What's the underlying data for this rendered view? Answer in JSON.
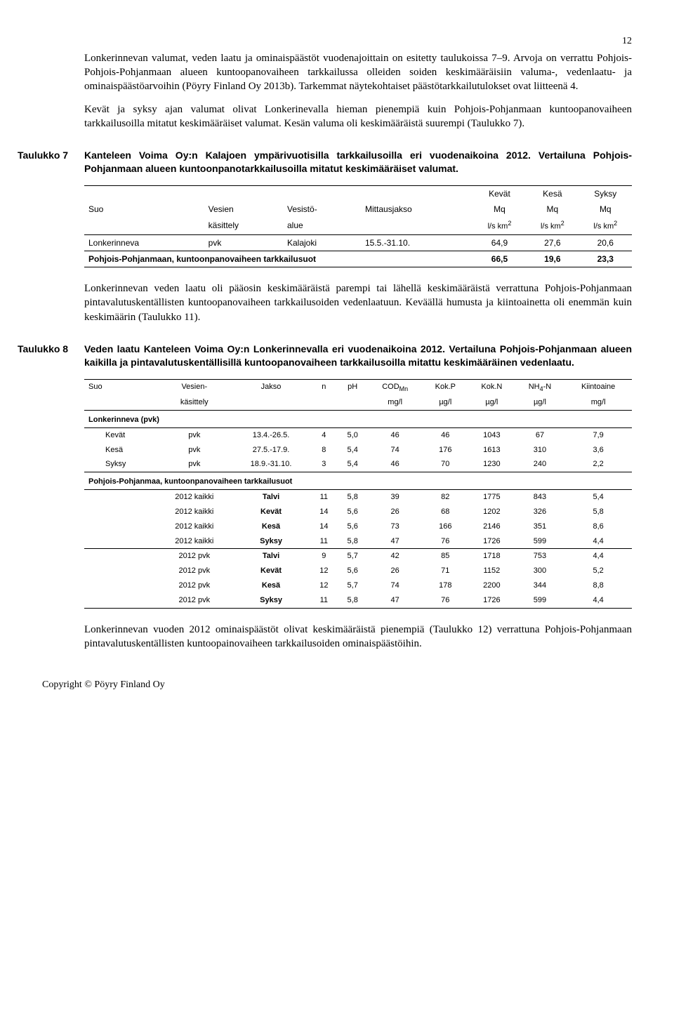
{
  "page_number": "12",
  "para1": "Lonkerinnevan valumat, veden laatu ja ominaispäästöt vuodenajoittain on esitetty taulukoissa 7–9. Arvoja on verrattu Pohjois-Pohjois-Pohjanmaan alueen kuntoopanovaiheen tarkkailussa olleiden soiden keskimääräisiin valuma-, vedenlaatu- ja ominaispäästöarvoihin (Pöyry Finland Oy 2013b). Tarkemmat näytekohtaiset päästötarkkailutulokset ovat liitteenä 4.",
  "para2": "Kevät ja syksy ajan valumat olivat Lonkerinevalla hieman pienempiä kuin Pohjois-Pohjanmaan kuntoopanovaiheen tarkkailusoilla mitatut keskimääräiset valumat. Kesän valuma oli keskimääräistä suurempi (Taulukko 7).",
  "t7": {
    "label": "Taulukko 7",
    "caption": "Kanteleen Voima Oy:n Kalajoen ympärivuotisilla tarkkailusoilla eri vuodenaikoina 2012. Vertailuna Pohjois-Pohjanmaan alueen kuntoonpanotarkkailusoilla mitatut keskimääräiset valumat.",
    "seasons": [
      "Kevät",
      "Kesä",
      "Syksy"
    ],
    "cols": [
      "Suo",
      "Vesien",
      "Vesistö-",
      "Mittausjakso",
      "Mq",
      "Mq",
      "Mq"
    ],
    "cols2": [
      "",
      "käsittely",
      "alue",
      "",
      "l/s km²",
      "l/s km²",
      "l/s km²"
    ],
    "row": [
      "Lonkerinneva",
      "pvk",
      "Kalajoki",
      "15.5.-31.10.",
      "64,9",
      "27,6",
      "20,6"
    ],
    "summary_label": "Pohjois-Pohjanmaan, kuntoonpanovaiheen tarkkailusuot",
    "summary_vals": [
      "66,5",
      "19,6",
      "23,3"
    ]
  },
  "para3": "Lonkerinnevan veden laatu oli pääosin keskimääräistä parempi tai lähellä keskimääräistä verrattuna Pohjois-Pohjanmaan pintavalutuskentällisten kuntoopanovaiheen tarkkailusoiden vedenlaatuun. Keväällä humusta ja kiintoainetta oli enemmän kuin keskimäärin (Taulukko 11).",
  "t8": {
    "label": "Taulukko 8",
    "caption": "Veden laatu Kanteleen Voima Oy:n Lonkerinnevalla eri vuodenaikoina 2012. Vertailuna Pohjois-Pohjanmaan alueen kaikilla ja pintavalutuskentällisillä kuntoopanovaiheen tarkkailusoilla mitattu keskimääräinen vedenlaatu.",
    "h1": [
      "Suo",
      "Vesien-",
      "Jakso",
      "n",
      "pH",
      "COD_Mn",
      "Kok.P",
      "Kok.N",
      "NH4-N",
      "Kiintoaine"
    ],
    "h2": [
      "",
      "käsittely",
      "",
      "",
      "",
      "mg/l",
      "µg/l",
      "µg/l",
      "µg/l",
      "mg/l"
    ],
    "sect1": "Lonkerinneva (pvk)",
    "rows1": [
      [
        "Kevät",
        "pvk",
        "13.4.-26.5.",
        "4",
        "5,0",
        "46",
        "46",
        "1043",
        "67",
        "7,9"
      ],
      [
        "Kesä",
        "pvk",
        "27.5.-17.9.",
        "8",
        "5,4",
        "74",
        "176",
        "1613",
        "310",
        "3,6"
      ],
      [
        "Syksy",
        "pvk",
        "18.9.-31.10.",
        "3",
        "5,4",
        "46",
        "70",
        "1230",
        "240",
        "2,2"
      ]
    ],
    "sect2": "Pohjois-Pohjanmaa, kuntoonpanovaiheen tarkkailusuot",
    "rows2": [
      [
        "",
        "2012 kaikki",
        "Talvi",
        "11",
        "5,8",
        "39",
        "82",
        "1775",
        "843",
        "5,4"
      ],
      [
        "",
        "2012 kaikki",
        "Kevät",
        "14",
        "5,6",
        "26",
        "68",
        "1202",
        "326",
        "5,8"
      ],
      [
        "",
        "2012 kaikki",
        "Kesä",
        "14",
        "5,6",
        "73",
        "166",
        "2146",
        "351",
        "8,6"
      ],
      [
        "",
        "2012 kaikki",
        "Syksy",
        "11",
        "5,8",
        "47",
        "76",
        "1726",
        "599",
        "4,4"
      ],
      [
        "",
        "2012 pvk",
        "Talvi",
        "9",
        "5,7",
        "42",
        "85",
        "1718",
        "753",
        "4,4"
      ],
      [
        "",
        "2012 pvk",
        "Kevät",
        "12",
        "5,6",
        "26",
        "71",
        "1152",
        "300",
        "5,2"
      ],
      [
        "",
        "2012 pvk",
        "Kesä",
        "12",
        "5,7",
        "74",
        "178",
        "2200",
        "344",
        "8,8"
      ],
      [
        "",
        "2012 pvk",
        "Syksy",
        "11",
        "5,8",
        "47",
        "76",
        "1726",
        "599",
        "4,4"
      ]
    ]
  },
  "para4": "Lonkerinnevan vuoden 2012 ominaispäästöt olivat keskimääräistä pienempiä (Taulukko 12) verrattuna Pohjois-Pohjanmaan pintavalutuskentällisten kuntoopainovaiheen tarkkailusoiden ominaispäästöihin.",
  "footer": "Copyright © Pöyry Finland Oy"
}
